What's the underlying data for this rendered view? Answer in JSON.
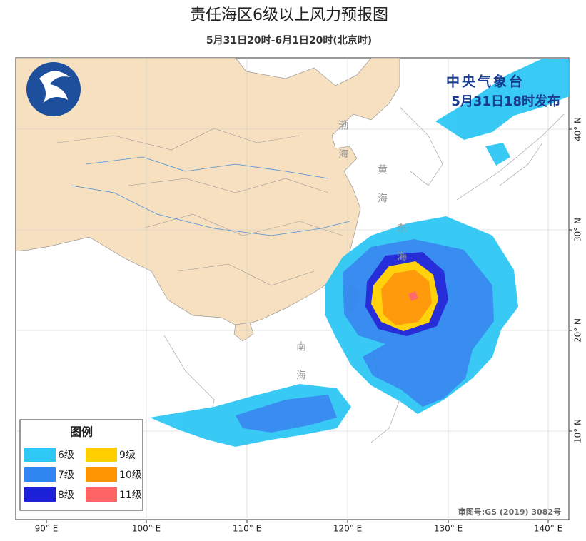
{
  "header": {
    "title": "责任海区6级以上风力预报图",
    "subtitle": "5月31日20时-6月1日20时(北京时)"
  },
  "issuer": {
    "name": "中央气象台",
    "time": "5月31日18时发布"
  },
  "legend": {
    "title": "图例",
    "items": [
      {
        "label": "6级",
        "color": "#2ec8f4"
      },
      {
        "label": "7级",
        "color": "#2f86f0"
      },
      {
        "label": "8级",
        "color": "#1c22d8"
      },
      {
        "label": "9级",
        "color": "#ffd000"
      },
      {
        "label": "10级",
        "color": "#ff9500"
      },
      {
        "label": "11级",
        "color": "#ff6464"
      }
    ]
  },
  "map": {
    "lon_labels": [
      "90° E",
      "100° E",
      "110° E",
      "120° E",
      "130° E",
      "140° E"
    ],
    "lat_labels": [
      "40° N",
      "30° N",
      "20° N",
      "10° N"
    ],
    "sea_labels": [
      "渤海",
      "黄海",
      "东海",
      "南海"
    ],
    "approval": "审图号:GS (2019) 3082号"
  }
}
